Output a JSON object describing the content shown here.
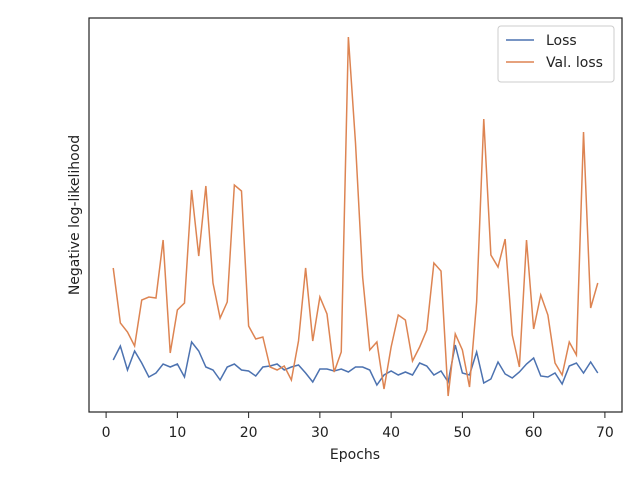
{
  "chart_data": {
    "type": "line",
    "xlabel": "Epochs",
    "ylabel": "Negative log-likelihood",
    "x": [
      1,
      2,
      3,
      4,
      5,
      6,
      7,
      8,
      9,
      10,
      11,
      12,
      13,
      14,
      15,
      16,
      17,
      18,
      19,
      20,
      21,
      22,
      23,
      24,
      25,
      26,
      27,
      28,
      29,
      30,
      31,
      32,
      33,
      34,
      35,
      36,
      37,
      38,
      39,
      40,
      41,
      42,
      43,
      44,
      45,
      46,
      47,
      48,
      49,
      50,
      51,
      52,
      53,
      54,
      55,
      56,
      57,
      58,
      59,
      60,
      61,
      62,
      63,
      64,
      65,
      66,
      67,
      68,
      69
    ],
    "series": [
      {
        "name": "Loss",
        "color": "#4c72b0",
        "values": [
          52,
          66,
          42,
          61,
          49,
          35,
          39,
          48,
          45,
          48,
          35,
          70,
          61,
          45,
          42,
          32,
          45,
          48,
          42,
          41,
          36,
          45,
          46,
          48,
          42,
          45,
          47,
          39,
          30,
          43,
          43,
          41,
          43,
          40,
          45,
          45,
          42,
          27,
          37,
          41,
          37,
          40,
          37,
          49,
          46,
          37,
          41,
          30,
          67,
          39,
          37,
          60,
          29,
          33,
          50,
          38,
          34,
          40,
          48,
          54,
          36,
          35,
          39,
          28,
          46,
          49,
          39,
          50,
          39
        ]
      },
      {
        "name": "Val. loss",
        "color": "#dd8452",
        "values": [
          144,
          89,
          80,
          66,
          112,
          115,
          114,
          172,
          59,
          102,
          109,
          222,
          156,
          226,
          129,
          94,
          110,
          227,
          221,
          86,
          73,
          75,
          45,
          42,
          46,
          32,
          71,
          144,
          71,
          115,
          98,
          40,
          60,
          375,
          269,
          135,
          62,
          70,
          23,
          65,
          97,
          92,
          51,
          65,
          82,
          149,
          141,
          16,
          78,
          62,
          25,
          110,
          293,
          157,
          145,
          173,
          77,
          45,
          172,
          83,
          117,
          97,
          49,
          37,
          70,
          57,
          280,
          104,
          129
        ]
      }
    ],
    "xlim": [
      -2.4,
      72.4
    ],
    "xticks": [
      0,
      10,
      20,
      30,
      40,
      50,
      60,
      70
    ],
    "ylim": [
      0,
      394
    ],
    "legend": "upper right"
  }
}
